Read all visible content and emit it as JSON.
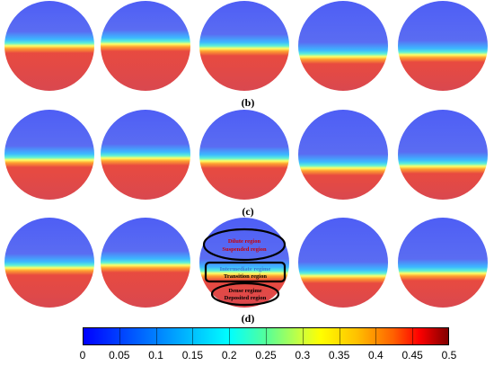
{
  "panel_labels": [
    "(b)",
    "(c)",
    "(d)"
  ],
  "annotations": {
    "top": [
      "Dilute region",
      "Suspended region"
    ],
    "middle": [
      "Intermediate regime",
      "Transition region"
    ],
    "bottom": [
      "Dense regime",
      "Deposited region"
    ]
  },
  "colorbar": {
    "min": 0,
    "max": 0.5,
    "tick_labels": [
      "0",
      "0.05",
      "0.1",
      "0.15",
      "0.2",
      "0.25",
      "0.3",
      "0.35",
      "0.4",
      "0.45",
      "0.5"
    ]
  },
  "colors": {
    "dilute": "#5a6cf2",
    "interface": "#ffff66",
    "dense": "#d9484f",
    "annotation_red": "#cc0000",
    "annotation_blue": "#3a6fd8"
  },
  "rows": [
    {
      "interfaces": [
        0.5,
        0.48,
        0.53,
        0.62,
        0.6
      ]
    },
    {
      "interfaces": [
        0.56,
        0.54,
        0.57,
        0.65,
        0.63
      ]
    },
    {
      "interfaces": [
        0.56,
        0.53,
        0.62,
        0.65,
        0.62
      ]
    }
  ]
}
